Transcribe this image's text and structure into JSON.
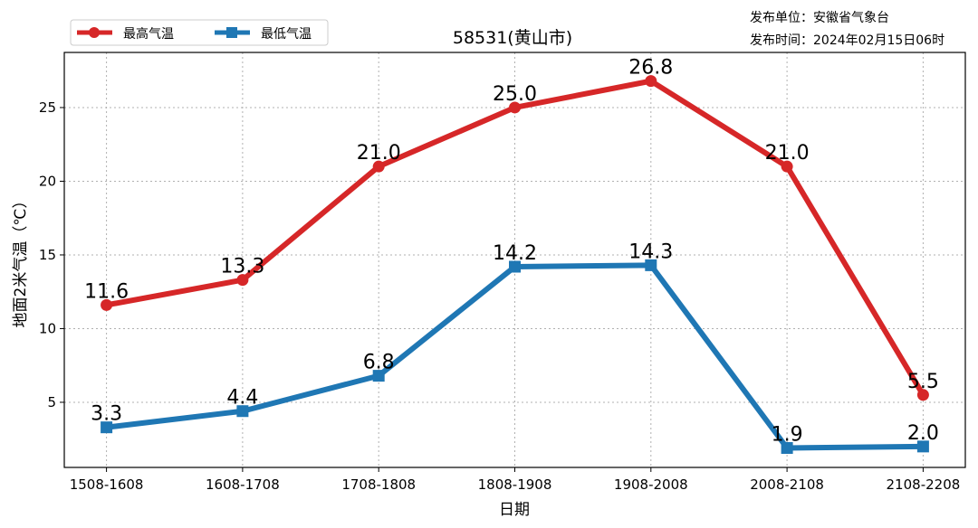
{
  "chart_data": {
    "type": "line",
    "title": "58531(黄山市)",
    "publisher": "发布单位：安徽省气象台",
    "publish_time": "发布时间：2024年02月15日06时",
    "xlabel": "日期",
    "ylabel": "地面2米气温（℃）",
    "categories": [
      "1508-1608",
      "1608-1708",
      "1708-1808",
      "1808-1908",
      "1908-2008",
      "2008-2108",
      "2108-2208"
    ],
    "ylim": [
      0.58,
      28.74
    ],
    "yticks": [
      5,
      10,
      15,
      20,
      25
    ],
    "grid": true,
    "legend_position": "top-left",
    "series": [
      {
        "name": "最高气温",
        "color": "#d62728",
        "marker": "circle",
        "values": [
          11.6,
          13.3,
          21.0,
          25.0,
          26.8,
          21.0,
          5.5
        ],
        "labels": [
          "11.6",
          "13.3",
          "21.0",
          "25.0",
          "26.8",
          "21.0",
          "5.5"
        ]
      },
      {
        "name": "最低气温",
        "color": "#1f77b4",
        "marker": "square",
        "values": [
          3.3,
          4.4,
          6.8,
          14.2,
          14.3,
          1.9,
          2.0
        ],
        "labels": [
          "3.3",
          "4.4",
          "6.8",
          "14.2",
          "14.3",
          "1.9",
          "2.0"
        ]
      }
    ]
  }
}
